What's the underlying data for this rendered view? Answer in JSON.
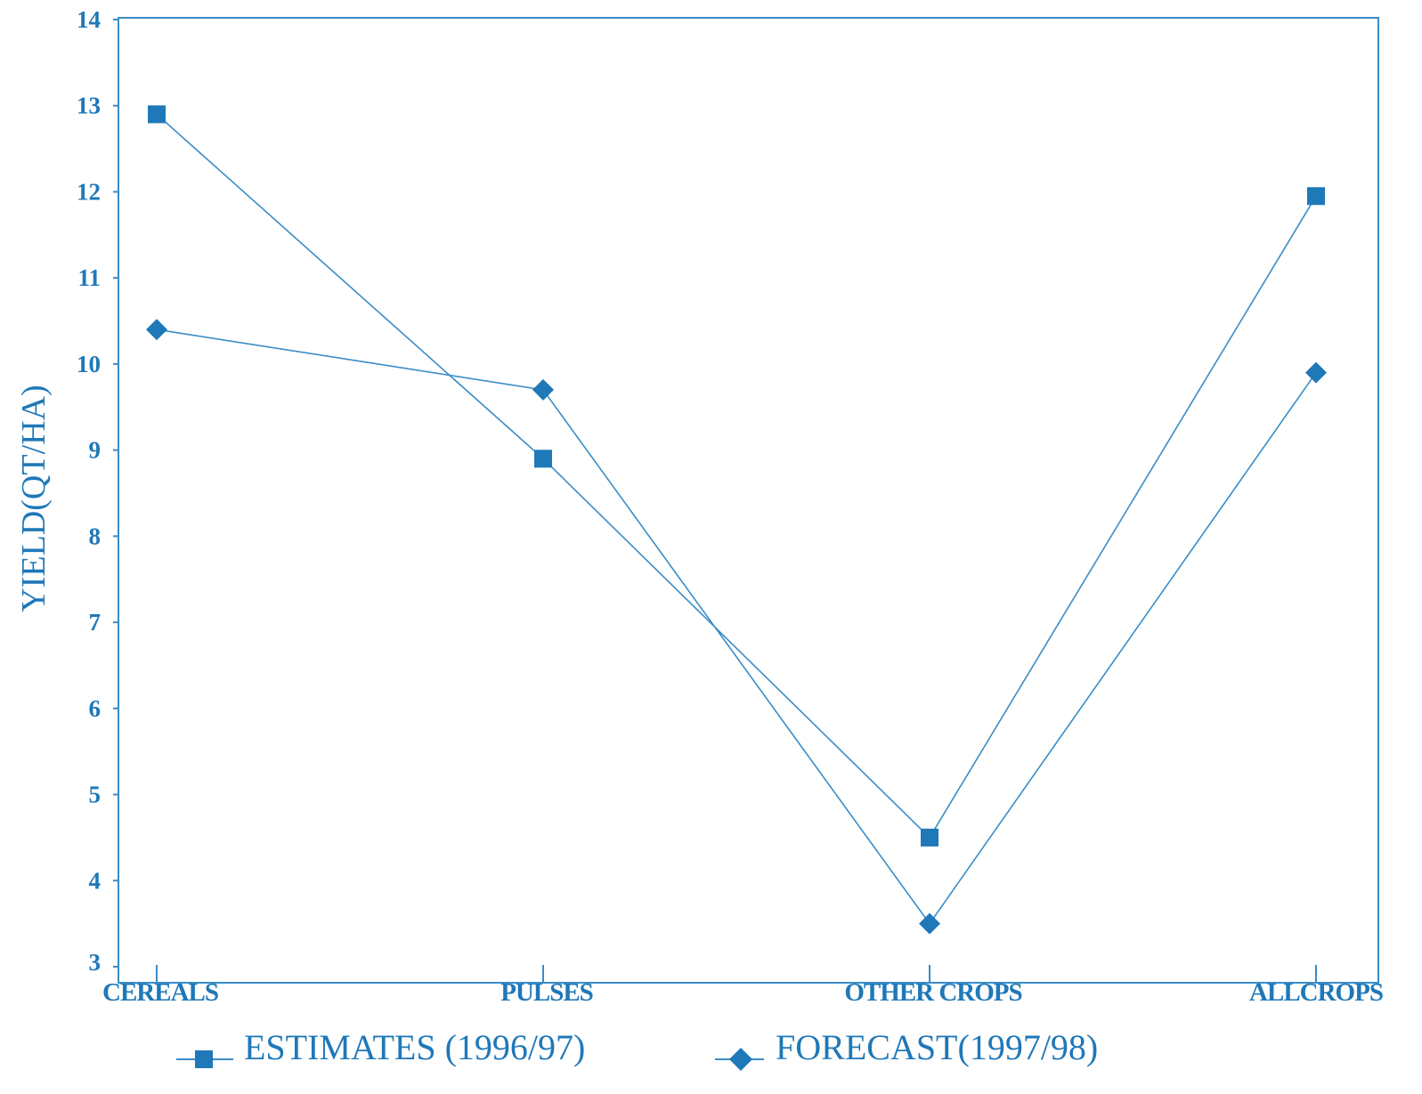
{
  "chart_data": {
    "type": "line",
    "title": "",
    "xlabel": "",
    "ylabel": "YIELD(QT/HA)",
    "categories": [
      "CEREALS",
      "PULSES",
      "OTHER CROPS",
      "ALLCROPS"
    ],
    "ylim": [
      3,
      14
    ],
    "yticks": [
      "3",
      "4",
      "5",
      "6",
      "7",
      "8",
      "9",
      "10",
      "11",
      "12",
      "13",
      "14"
    ],
    "grid": false,
    "legend_position": "bottom",
    "series": [
      {
        "name": "ESTIMATES (1996/97)",
        "marker": "square",
        "values": [
          12.9,
          8.9,
          4.5,
          11.95
        ]
      },
      {
        "name": "FORECAST(1997/98)",
        "marker": "diamond",
        "values": [
          10.4,
          9.7,
          3.5,
          9.9
        ]
      }
    ],
    "colors": {
      "line": "#3a8cc8",
      "marker": "#1f78b8",
      "text": "#1f78b8",
      "axis": "#3a8cc8"
    }
  }
}
